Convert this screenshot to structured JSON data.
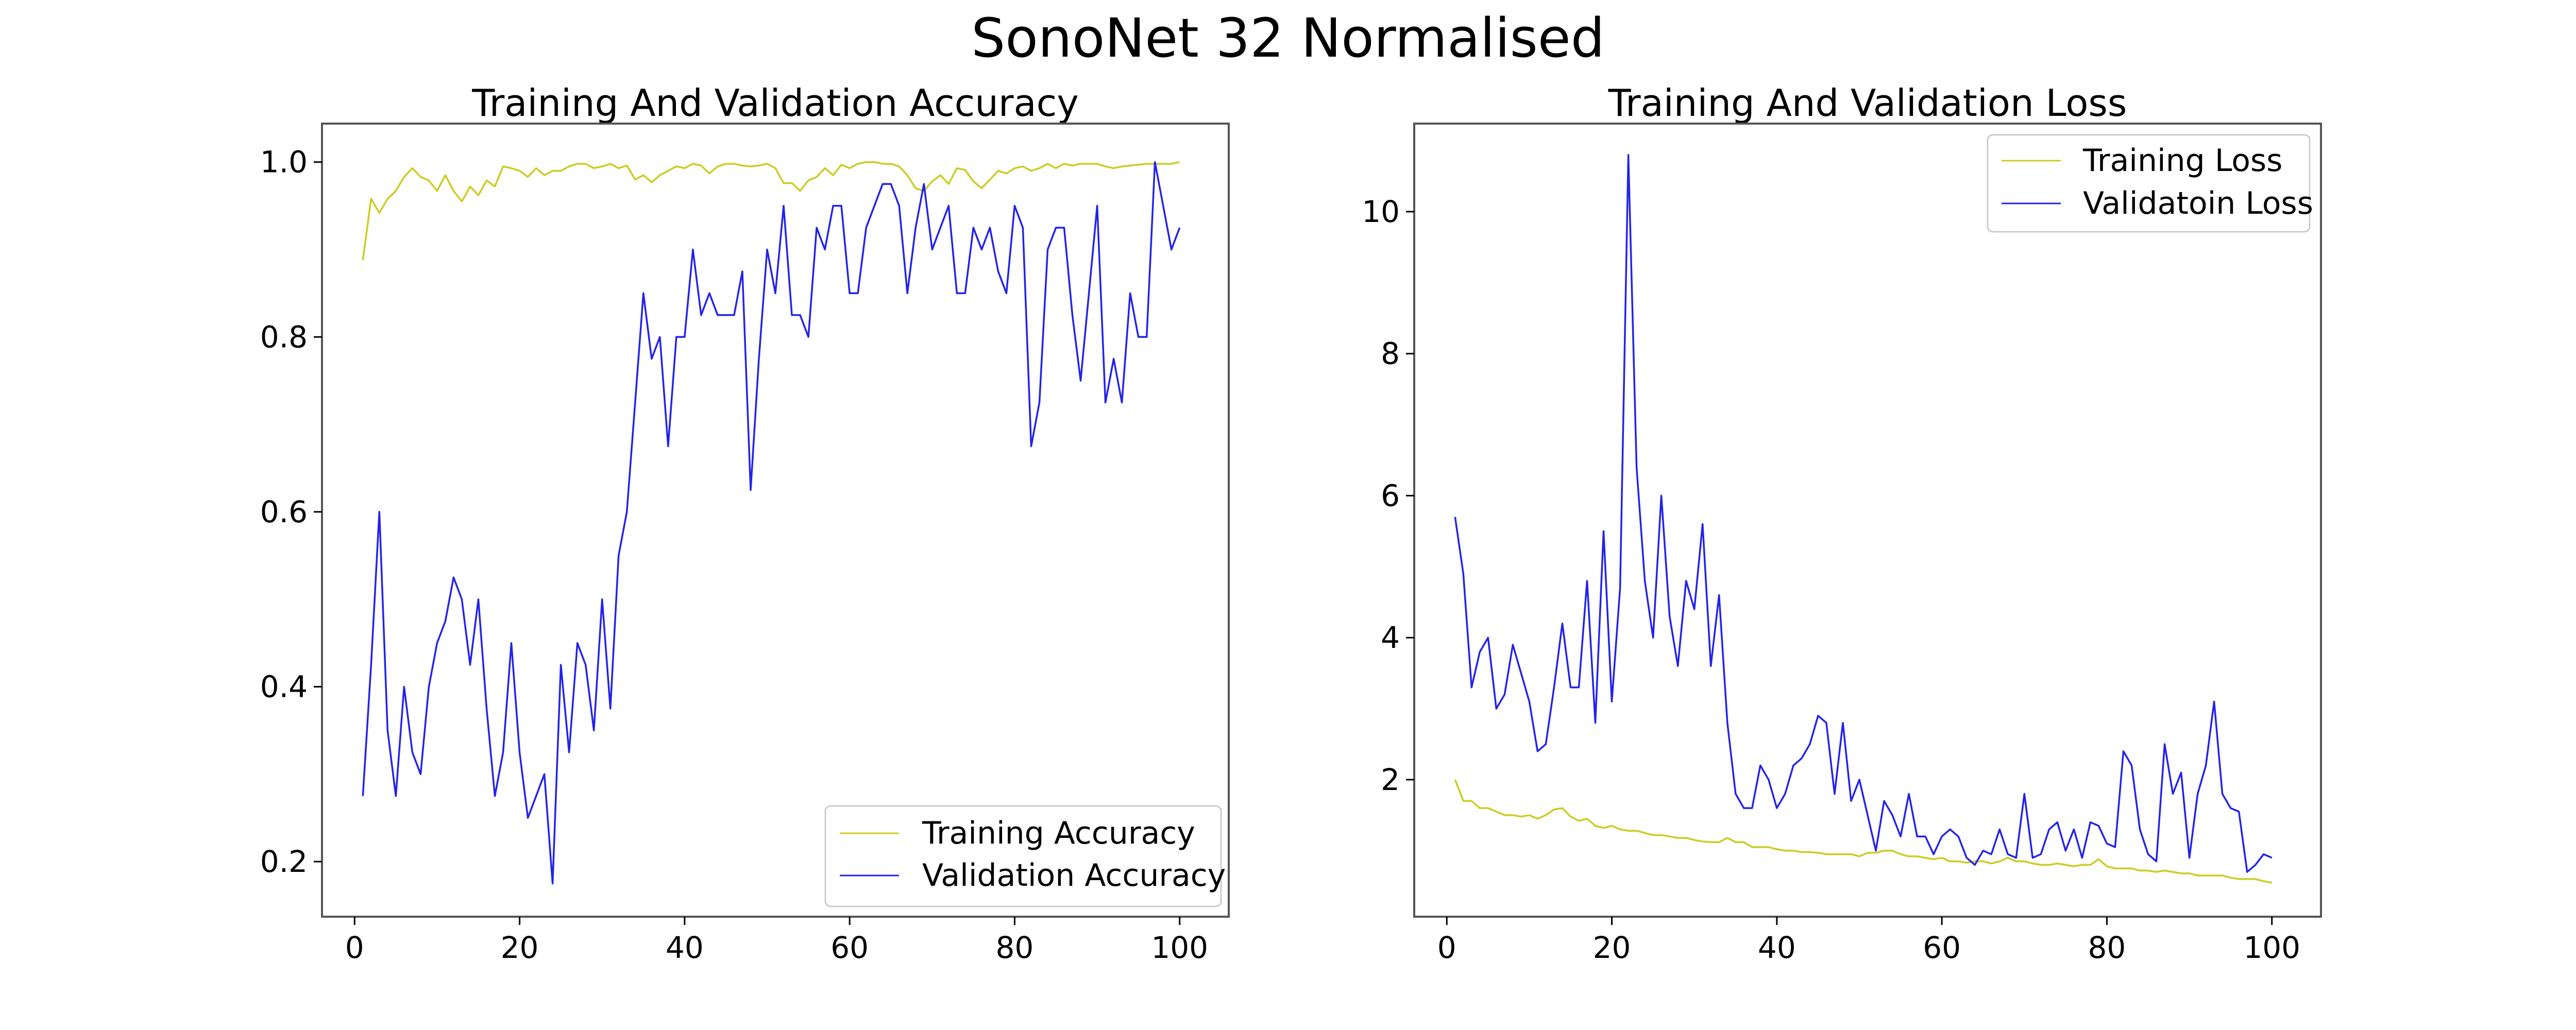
{
  "figure": {
    "title": "SonoNet 32 Normalised"
  },
  "colors": {
    "training": "#cccc22",
    "validation": "#2222ee",
    "frame": "#555555",
    "legend_border": "#cccccc"
  },
  "chart_data": [
    {
      "type": "line",
      "title": "Training And Validation Accuracy",
      "xlabel": "",
      "ylabel": "",
      "xlim": [
        -3.95,
        105.95
      ],
      "ylim": [
        0.137,
        1.044
      ],
      "xticks": [
        0,
        20,
        40,
        60,
        80,
        100
      ],
      "xtick_labels": [
        "0",
        "20",
        "40",
        "60",
        "80",
        "100"
      ],
      "yticks": [
        0.2,
        0.4,
        0.6,
        0.8,
        1.0
      ],
      "ytick_labels": [
        "0.2",
        "0.4",
        "0.6",
        "0.8",
        "1.0"
      ],
      "grid": false,
      "legend_position": "lower-right",
      "x": [
        1,
        2,
        3,
        4,
        5,
        6,
        7,
        8,
        9,
        10,
        11,
        12,
        13,
        14,
        15,
        16,
        17,
        18,
        19,
        20,
        21,
        22,
        23,
        24,
        25,
        26,
        27,
        28,
        29,
        30,
        31,
        32,
        33,
        34,
        35,
        36,
        37,
        38,
        39,
        40,
        41,
        42,
        43,
        44,
        45,
        46,
        47,
        48,
        49,
        50,
        51,
        52,
        53,
        54,
        55,
        56,
        57,
        58,
        59,
        60,
        61,
        62,
        63,
        64,
        65,
        66,
        67,
        68,
        69,
        70,
        71,
        72,
        73,
        74,
        75,
        76,
        77,
        78,
        79,
        80,
        81,
        82,
        83,
        84,
        85,
        86,
        87,
        88,
        89,
        90,
        91,
        92,
        93,
        94,
        95,
        96,
        97,
        98,
        99,
        100
      ],
      "series": [
        {
          "name": "Training Accuracy",
          "color": "#cccc22",
          "values": [
            0.888,
            0.958,
            0.942,
            0.958,
            0.967,
            0.983,
            0.993,
            0.983,
            0.979,
            0.967,
            0.985,
            0.967,
            0.955,
            0.972,
            0.962,
            0.979,
            0.972,
            0.995,
            0.993,
            0.99,
            0.983,
            0.993,
            0.985,
            0.99,
            0.99,
            0.995,
            0.998,
            0.998,
            0.993,
            0.995,
            0.998,
            0.993,
            0.996,
            0.98,
            0.985,
            0.977,
            0.985,
            0.99,
            0.995,
            0.993,
            0.998,
            0.996,
            0.987,
            0.995,
            0.998,
            0.998,
            0.996,
            0.995,
            0.996,
            0.998,
            0.993,
            0.976,
            0.976,
            0.967,
            0.979,
            0.983,
            0.993,
            0.985,
            0.997,
            0.993,
            0.998,
            1.0,
            1.0,
            0.998,
            0.998,
            0.995,
            0.985,
            0.97,
            0.967,
            0.978,
            0.985,
            0.975,
            0.993,
            0.991,
            0.978,
            0.97,
            0.98,
            0.99,
            0.987,
            0.993,
            0.995,
            0.99,
            0.993,
            0.998,
            0.993,
            0.998,
            0.996,
            0.998,
            0.998,
            0.998,
            0.995,
            0.993,
            0.995,
            0.996,
            0.997,
            0.998,
            0.998,
            0.998,
            0.998,
            1.0
          ]
        },
        {
          "name": "Validation Accuracy",
          "color": "#2222ee",
          "values": [
            0.275,
            0.425,
            0.6,
            0.35,
            0.275,
            0.4,
            0.325,
            0.3,
            0.4,
            0.45,
            0.475,
            0.525,
            0.5,
            0.425,
            0.5,
            0.375,
            0.275,
            0.325,
            0.45,
            0.325,
            0.25,
            0.275,
            0.3,
            0.175,
            0.425,
            0.325,
            0.45,
            0.425,
            0.35,
            0.5,
            0.375,
            0.55,
            0.6,
            0.725,
            0.85,
            0.775,
            0.8,
            0.675,
            0.8,
            0.8,
            0.9,
            0.825,
            0.85,
            0.825,
            0.825,
            0.825,
            0.875,
            0.625,
            0.775,
            0.9,
            0.85,
            0.95,
            0.825,
            0.825,
            0.8,
            0.925,
            0.9,
            0.95,
            0.95,
            0.85,
            0.85,
            0.925,
            0.95,
            0.975,
            0.975,
            0.95,
            0.85,
            0.925,
            0.975,
            0.9,
            0.925,
            0.95,
            0.85,
            0.85,
            0.925,
            0.9,
            0.925,
            0.875,
            0.85,
            0.95,
            0.925,
            0.675,
            0.725,
            0.9,
            0.925,
            0.925,
            0.825,
            0.75,
            0.85,
            0.95,
            0.725,
            0.775,
            0.725,
            0.85,
            0.8,
            0.8,
            1.0,
            0.95,
            0.9,
            0.925
          ]
        }
      ]
    },
    {
      "type": "line",
      "title": "Training And Validation Loss",
      "xlabel": "",
      "ylabel": "",
      "xlim": [
        -3.95,
        105.95
      ],
      "ylim": [
        0.07,
        11.24
      ],
      "xticks": [
        0,
        20,
        40,
        60,
        80,
        100
      ],
      "xtick_labels": [
        "0",
        "20",
        "40",
        "60",
        "80",
        "100"
      ],
      "yticks": [
        2,
        4,
        6,
        8,
        10
      ],
      "ytick_labels": [
        "2",
        "4",
        "6",
        "8",
        "10"
      ],
      "grid": false,
      "legend_position": "upper-right",
      "x": [
        1,
        2,
        3,
        4,
        5,
        6,
        7,
        8,
        9,
        10,
        11,
        12,
        13,
        14,
        15,
        16,
        17,
        18,
        19,
        20,
        21,
        22,
        23,
        24,
        25,
        26,
        27,
        28,
        29,
        30,
        31,
        32,
        33,
        34,
        35,
        36,
        37,
        38,
        39,
        40,
        41,
        42,
        43,
        44,
        45,
        46,
        47,
        48,
        49,
        50,
        51,
        52,
        53,
        54,
        55,
        56,
        57,
        58,
        59,
        60,
        61,
        62,
        63,
        64,
        65,
        66,
        67,
        68,
        69,
        70,
        71,
        72,
        73,
        74,
        75,
        76,
        77,
        78,
        79,
        80,
        81,
        82,
        83,
        84,
        85,
        86,
        87,
        88,
        89,
        90,
        91,
        92,
        93,
        94,
        95,
        96,
        97,
        98,
        99,
        100
      ],
      "series": [
        {
          "name": "Training Loss",
          "color": "#cccc22",
          "values": [
            2.0,
            1.7,
            1.7,
            1.6,
            1.6,
            1.55,
            1.5,
            1.5,
            1.48,
            1.5,
            1.45,
            1.5,
            1.58,
            1.6,
            1.48,
            1.42,
            1.45,
            1.35,
            1.32,
            1.35,
            1.3,
            1.28,
            1.28,
            1.25,
            1.22,
            1.22,
            1.2,
            1.18,
            1.18,
            1.15,
            1.13,
            1.12,
            1.12,
            1.18,
            1.12,
            1.12,
            1.05,
            1.05,
            1.05,
            1.02,
            1.0,
            1.0,
            0.98,
            0.98,
            0.97,
            0.95,
            0.95,
            0.95,
            0.95,
            0.92,
            0.97,
            0.97,
            1.0,
            1.0,
            0.95,
            0.92,
            0.92,
            0.9,
            0.88,
            0.9,
            0.85,
            0.85,
            0.83,
            0.85,
            0.85,
            0.82,
            0.85,
            0.9,
            0.85,
            0.85,
            0.82,
            0.8,
            0.8,
            0.82,
            0.8,
            0.78,
            0.8,
            0.8,
            0.88,
            0.78,
            0.75,
            0.75,
            0.75,
            0.72,
            0.72,
            0.7,
            0.72,
            0.7,
            0.68,
            0.68,
            0.65,
            0.65,
            0.65,
            0.65,
            0.62,
            0.6,
            0.6,
            0.6,
            0.57,
            0.55
          ]
        },
        {
          "name": "Validatoin Loss",
          "color": "#2222ee",
          "values": [
            5.7,
            4.9,
            3.3,
            3.8,
            4.0,
            3.0,
            3.2,
            3.9,
            3.5,
            3.1,
            2.4,
            2.5,
            3.3,
            4.2,
            3.3,
            3.3,
            4.8,
            2.8,
            5.5,
            3.1,
            4.7,
            10.8,
            6.4,
            4.8,
            4.0,
            6.0,
            4.3,
            3.6,
            4.8,
            4.4,
            5.6,
            3.6,
            4.6,
            2.8,
            1.8,
            1.6,
            1.6,
            2.2,
            2.0,
            1.6,
            1.8,
            2.2,
            2.3,
            2.5,
            2.9,
            2.8,
            1.8,
            2.8,
            1.7,
            2.0,
            1.5,
            1.0,
            1.7,
            1.5,
            1.2,
            1.8,
            1.2,
            1.2,
            0.95,
            1.2,
            1.3,
            1.2,
            0.9,
            0.8,
            1.0,
            0.95,
            1.3,
            0.95,
            0.9,
            1.8,
            0.9,
            0.95,
            1.3,
            1.4,
            1.0,
            1.3,
            0.9,
            1.4,
            1.35,
            1.1,
            1.05,
            2.4,
            2.2,
            1.3,
            0.95,
            0.85,
            2.5,
            1.8,
            2.1,
            0.9,
            1.8,
            2.2,
            3.1,
            1.8,
            1.6,
            1.55,
            0.7,
            0.8,
            0.95,
            0.9
          ]
        }
      ]
    }
  ]
}
